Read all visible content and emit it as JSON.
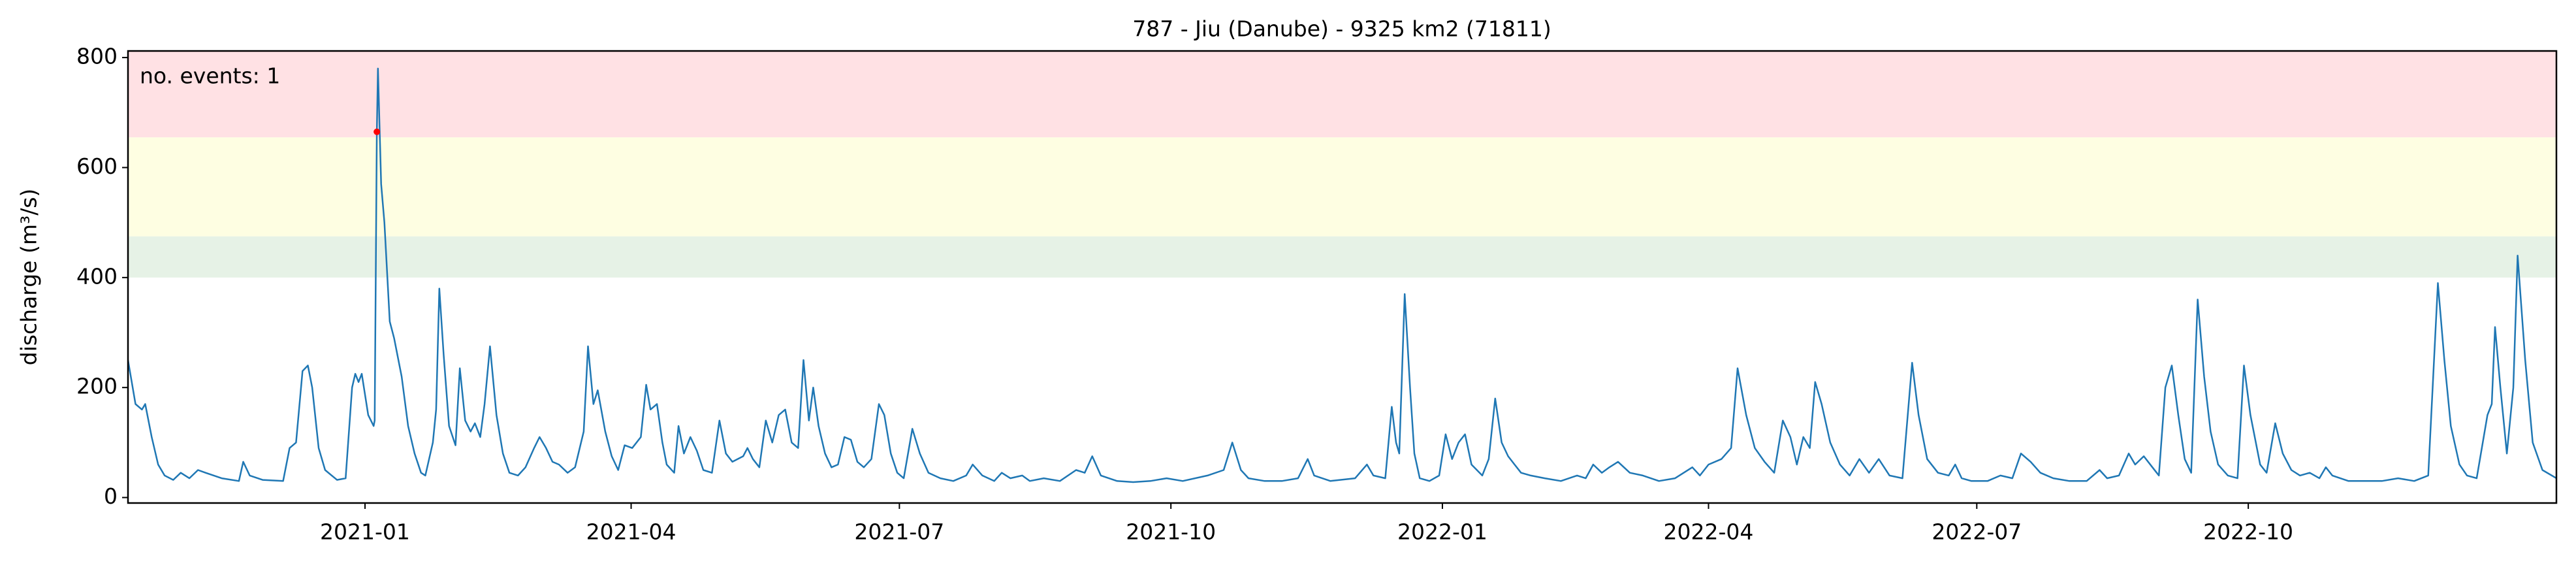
{
  "chart_data": {
    "type": "line",
    "title": "787 - Jiu (Danube) - 9325 km2 (71811)",
    "ylabel": "discharge (m³/s)",
    "annotation": "no. events: 1",
    "annotation_color": "#e00000",
    "color": "#1f77b4",
    "xlim": [
      2020.78,
      2023.034
    ],
    "ylim": [
      -10,
      812
    ],
    "xticks": [
      {
        "value": 2021.0,
        "label": "2021-01"
      },
      {
        "value": 2021.247,
        "label": "2021-04"
      },
      {
        "value": 2021.496,
        "label": "2021-07"
      },
      {
        "value": 2021.748,
        "label": "2021-10"
      },
      {
        "value": 2022.0,
        "label": "2022-01"
      },
      {
        "value": 2022.247,
        "label": "2022-04"
      },
      {
        "value": 2022.496,
        "label": "2022-07"
      },
      {
        "value": 2022.748,
        "label": "2022-10"
      }
    ],
    "yticks": [
      0,
      200,
      400,
      600,
      800
    ],
    "bands": [
      {
        "from": 400,
        "to": 475,
        "color": "#e6f2e6"
      },
      {
        "from": 475,
        "to": 655,
        "color": "#fefee2"
      },
      {
        "from": 655,
        "to": 812,
        "color": "#ffe1e4"
      }
    ],
    "events": {
      "x": [
        2021.011
      ],
      "values": [
        665
      ],
      "color": "#ff0000"
    },
    "x": [
      2020.78,
      2020.787,
      2020.793,
      2020.796,
      2020.802,
      2020.808,
      2020.814,
      2020.822,
      2020.829,
      2020.837,
      2020.845,
      2020.852,
      2020.867,
      2020.883,
      2020.887,
      2020.893,
      2020.905,
      2020.924,
      2020.93,
      2020.936,
      2020.942,
      2020.947,
      2020.951,
      2020.957,
      2020.963,
      2020.974,
      2020.982,
      2020.988,
      2020.991,
      2020.994,
      2020.997,
      2021.003,
      2021.008,
      2021.009,
      2021.011,
      2021.012,
      2021.015,
      2021.018,
      2021.023,
      2021.027,
      2021.034,
      2021.04,
      2021.046,
      2021.052,
      2021.056,
      2021.063,
      2021.066,
      2021.069,
      2021.073,
      2021.078,
      2021.084,
      2021.088,
      2021.093,
      2021.098,
      2021.102,
      2021.107,
      2021.111,
      2021.116,
      2021.122,
      2021.128,
      2021.134,
      2021.142,
      2021.149,
      2021.157,
      2021.162,
      2021.168,
      2021.174,
      2021.18,
      2021.188,
      2021.195,
      2021.203,
      2021.207,
      2021.212,
      2021.216,
      2021.223,
      2021.229,
      2021.235,
      2021.241,
      2021.248,
      2021.256,
      2021.261,
      2021.265,
      2021.271,
      2021.276,
      2021.28,
      2021.287,
      2021.291,
      2021.296,
      2021.302,
      2021.308,
      2021.314,
      2021.322,
      2021.329,
      2021.335,
      2021.341,
      2021.351,
      2021.355,
      2021.36,
      2021.366,
      2021.372,
      2021.378,
      2021.384,
      2021.39,
      2021.396,
      2021.402,
      2021.407,
      2021.412,
      2021.416,
      2021.421,
      2021.427,
      2021.433,
      2021.439,
      2021.445,
      2021.451,
      2021.457,
      2021.463,
      2021.47,
      2021.477,
      2021.482,
      2021.488,
      2021.494,
      2021.5,
      2021.508,
      2021.515,
      2021.523,
      2021.534,
      2021.546,
      2021.558,
      2021.564,
      2021.573,
      2021.584,
      2021.591,
      2021.599,
      2021.61,
      2021.617,
      2021.63,
      2021.645,
      2021.66,
      2021.668,
      2021.675,
      2021.683,
      2021.698,
      2021.713,
      2021.729,
      2021.744,
      2021.759,
      2021.782,
      2021.797,
      2021.805,
      2021.813,
      2021.82,
      2021.835,
      2021.851,
      2021.866,
      2021.875,
      2021.881,
      2021.896,
      2021.919,
      2021.93,
      2021.936,
      2021.947,
      2021.953,
      2021.957,
      2021.96,
      2021.965,
      2021.97,
      2021.974,
      2021.979,
      2021.988,
      2021.997,
      2022.003,
      2022.009,
      2022.015,
      2022.021,
      2022.027,
      2022.037,
      2022.043,
      2022.049,
      2022.055,
      2022.061,
      2022.067,
      2022.073,
      2022.082,
      2022.095,
      2022.11,
      2022.125,
      2022.133,
      2022.14,
      2022.148,
      2022.155,
      2022.163,
      2022.174,
      2022.186,
      2022.201,
      2022.216,
      2022.232,
      2022.239,
      2022.247,
      2022.259,
      2022.268,
      2022.274,
      2022.282,
      2022.29,
      2022.299,
      2022.308,
      2022.316,
      2022.323,
      2022.329,
      2022.335,
      2022.341,
      2022.346,
      2022.352,
      2022.36,
      2022.369,
      2022.378,
      2022.387,
      2022.396,
      2022.405,
      2022.415,
      2022.427,
      2022.436,
      2022.442,
      2022.45,
      2022.46,
      2022.47,
      2022.476,
      2022.482,
      2022.491,
      2022.506,
      2022.518,
      2022.529,
      2022.537,
      2022.546,
      2022.555,
      2022.567,
      2022.582,
      2022.598,
      2022.61,
      2022.617,
      2022.628,
      2022.637,
      2022.643,
      2022.651,
      2022.659,
      2022.665,
      2022.671,
      2022.677,
      2022.683,
      2022.689,
      2022.695,
      2022.701,
      2022.707,
      2022.713,
      2022.72,
      2022.729,
      2022.738,
      2022.744,
      2022.75,
      2022.759,
      2022.765,
      2022.773,
      2022.78,
      2022.788,
      2022.796,
      2022.805,
      2022.814,
      2022.82,
      2022.826,
      2022.841,
      2022.857,
      2022.872,
      2022.887,
      2022.902,
      2022.915,
      2022.924,
      2022.93,
      2022.936,
      2022.944,
      2022.951,
      2022.96,
      2022.97,
      2022.974,
      2022.977,
      2022.982,
      2022.988,
      2022.994,
      2022.998,
      2023.005,
      2023.012,
      2023.021,
      2023.034
    ],
    "values": [
      250,
      170,
      160,
      170,
      110,
      60,
      40,
      32,
      45,
      35,
      50,
      45,
      35,
      30,
      65,
      40,
      32,
      30,
      90,
      100,
      230,
      240,
      200,
      90,
      50,
      32,
      35,
      200,
      225,
      210,
      225,
      150,
      130,
      140,
      665,
      780,
      570,
      500,
      320,
      290,
      220,
      130,
      80,
      45,
      40,
      100,
      160,
      380,
      260,
      130,
      95,
      235,
      140,
      120,
      135,
      110,
      170,
      275,
      150,
      80,
      45,
      40,
      55,
      90,
      110,
      90,
      65,
      60,
      45,
      55,
      120,
      275,
      170,
      195,
      120,
      75,
      50,
      95,
      90,
      110,
      205,
      160,
      170,
      100,
      60,
      45,
      130,
      80,
      110,
      85,
      50,
      45,
      140,
      80,
      65,
      75,
      90,
      70,
      55,
      140,
      100,
      150,
      160,
      100,
      90,
      250,
      140,
      200,
      130,
      80,
      55,
      60,
      110,
      105,
      65,
      55,
      70,
      170,
      150,
      80,
      45,
      35,
      125,
      80,
      45,
      35,
      30,
      40,
      60,
      40,
      30,
      45,
      35,
      40,
      30,
      35,
      30,
      50,
      45,
      75,
      40,
      30,
      28,
      30,
      35,
      30,
      40,
      50,
      100,
      50,
      35,
      30,
      30,
      35,
      70,
      40,
      30,
      35,
      60,
      40,
      35,
      165,
      100,
      80,
      370,
      200,
      80,
      35,
      30,
      40,
      115,
      70,
      100,
      115,
      60,
      40,
      70,
      180,
      100,
      75,
      60,
      45,
      40,
      35,
      30,
      40,
      35,
      60,
      45,
      55,
      65,
      45,
      40,
      30,
      35,
      55,
      40,
      60,
      70,
      90,
      235,
      150,
      90,
      65,
      45,
      140,
      110,
      60,
      110,
      90,
      210,
      170,
      100,
      60,
      40,
      70,
      45,
      70,
      40,
      35,
      245,
      150,
      70,
      45,
      40,
      60,
      35,
      30,
      30,
      40,
      35,
      80,
      65,
      45,
      35,
      30,
      30,
      50,
      35,
      40,
      80,
      60,
      75,
      55,
      40,
      200,
      240,
      150,
      70,
      45,
      360,
      220,
      120,
      60,
      40,
      35,
      240,
      150,
      60,
      45,
      135,
      80,
      50,
      40,
      45,
      35,
      55,
      40,
      30,
      30,
      30,
      35,
      30,
      40,
      390,
      250,
      130,
      60,
      40,
      35,
      150,
      170,
      310,
      200,
      80,
      200,
      440,
      250,
      100,
      50,
      35
    ]
  }
}
